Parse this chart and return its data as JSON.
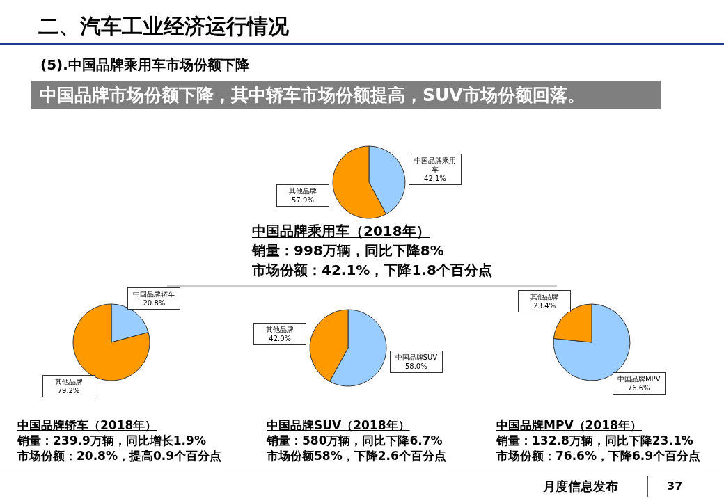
{
  "chart_data": [
    {
      "type": "other",
      "title": "二、汽车工业经济运行情况",
      "subtitle": "(5).中国品牌乘用车市场份额下降",
      "annotations": [
        "中国品牌市场份额下降，其中轿车市场份额提高，SUV市场份额回落。",
        "月度信息发布",
        "37"
      ]
    },
    {
      "type": "pie",
      "title": "中国品牌乘用车（2018年）",
      "subtitle": "销量：998万辆，同比下降8%",
      "annotations": [
        "市场份额：42.1%，下降1.8个百分点"
      ],
      "categories": [
        "中国品牌乘用车",
        "其他品牌"
      ],
      "values": [
        42.1,
        57.9
      ],
      "colors": [
        "#99ccff",
        "#ff9900"
      ],
      "value_labels": [
        "42.1%",
        "57.9%"
      ]
    },
    {
      "type": "pie",
      "title": "中国品牌轿车（2018年）",
      "subtitle": "销量：239.9万辆，同比增长1.9%",
      "annotations": [
        "市场份额：20.8%，提高0.9个百分点"
      ],
      "categories": [
        "中国品牌轿车",
        "其他品牌"
      ],
      "values": [
        20.8,
        79.2
      ],
      "colors": [
        "#99ccff",
        "#ff9900"
      ],
      "value_labels": [
        "20.8%",
        "79.2%"
      ]
    },
    {
      "type": "pie",
      "title": "中国品牌SUV（2018年）",
      "subtitle": "销量：580万辆，同比下降6.7%",
      "annotations": [
        "市场份额58%，下降2.6个百分点"
      ],
      "categories": [
        "中国品牌SUV",
        "其他品牌"
      ],
      "values": [
        58.0,
        42.0
      ],
      "colors": [
        "#99ccff",
        "#ff9900"
      ],
      "value_labels": [
        "58.0%",
        "42.0%"
      ]
    },
    {
      "type": "pie",
      "title": "中国品牌MPV（2018年）",
      "subtitle": "销量：132.8万辆，同比下降23.1%",
      "annotations": [
        "市场份额：76.6%，下降6.9个百分点"
      ],
      "categories": [
        "中国品牌MPV",
        "其他品牌"
      ],
      "values": [
        76.6,
        23.4
      ],
      "colors": [
        "#99ccff",
        "#ff9900"
      ],
      "value_labels": [
        "76.6%",
        "23.4%"
      ]
    }
  ]
}
